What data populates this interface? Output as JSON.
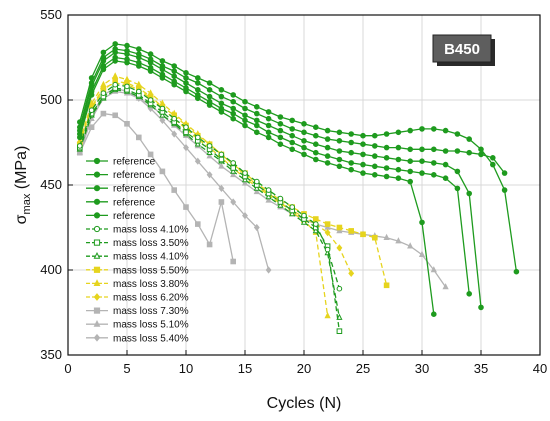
{
  "chart_data": {
    "type": "line",
    "badge": "B450",
    "xlabel": "Cycles (N)",
    "ylabel_main": "σ",
    "ylabel_sub": "max",
    "ylabel_unit": " (MPa)",
    "xlim": [
      0,
      40
    ],
    "ylim": [
      350,
      550
    ],
    "xticks": [
      "0",
      "5",
      "10",
      "15",
      "20",
      "25",
      "30",
      "35",
      "40"
    ],
    "yticks": [
      "350",
      "400",
      "450",
      "500",
      "550"
    ],
    "grid": true,
    "legend_position": "lower-left",
    "colors": {
      "reference": "#1a9a1a",
      "green_light": "#22a84a",
      "yellow": "#e0d21a",
      "yellow_dark": "#d6c400",
      "gray": "#b0b0b0",
      "badge_bg": "#5a5a5a"
    },
    "series": [
      {
        "name": "reference",
        "color": "#1e9b1e",
        "marker": "circle",
        "fill": true,
        "dash": false,
        "x": [
          1,
          2,
          3,
          4,
          5,
          6,
          7,
          8,
          9,
          10,
          11,
          12,
          13,
          14,
          15,
          16,
          17,
          18,
          19,
          20,
          21,
          22,
          23,
          24,
          25,
          26,
          27,
          28,
          29,
          30,
          31,
          32,
          33,
          34,
          35,
          36,
          37,
          38
        ],
        "y": [
          487,
          513,
          528,
          533,
          532,
          530,
          527,
          523,
          520,
          516,
          513,
          510,
          506,
          503,
          499,
          496,
          493,
          490,
          488,
          486,
          484,
          482,
          481,
          480,
          479,
          479,
          480,
          481,
          482,
          483,
          483,
          482,
          480,
          477,
          471,
          462,
          447,
          399
        ]
      },
      {
        "name": "reference",
        "color": "#1e9b1e",
        "marker": "circle",
        "fill": true,
        "dash": false,
        "x": [
          1,
          2,
          3,
          4,
          5,
          6,
          7,
          8,
          9,
          10,
          11,
          12,
          13,
          14,
          15,
          16,
          17,
          18,
          19,
          20,
          21,
          22,
          23,
          24,
          25,
          26,
          27,
          28,
          29,
          30,
          31,
          32,
          33,
          34,
          35,
          36,
          37
        ],
        "y": [
          484,
          510,
          525,
          530,
          529,
          527,
          524,
          520,
          517,
          513,
          510,
          506,
          502,
          499,
          495,
          492,
          489,
          486,
          483,
          481,
          479,
          477,
          476,
          475,
          474,
          473,
          472,
          472,
          471,
          471,
          471,
          470,
          470,
          469,
          468,
          466,
          457
        ]
      },
      {
        "name": "reference",
        "color": "#1e9b1e",
        "marker": "circle",
        "fill": true,
        "dash": false,
        "x": [
          1,
          2,
          3,
          4,
          5,
          6,
          7,
          8,
          9,
          10,
          11,
          12,
          13,
          14,
          15,
          16,
          17,
          18,
          19,
          20,
          21,
          22,
          23,
          24,
          25,
          26,
          27,
          28,
          29,
          30,
          31,
          32,
          33,
          34,
          35
        ],
        "y": [
          482,
          508,
          523,
          528,
          527,
          525,
          522,
          518,
          514,
          510,
          506,
          502,
          498,
          495,
          491,
          488,
          485,
          482,
          479,
          476,
          474,
          472,
          470,
          469,
          468,
          467,
          466,
          465,
          464,
          464,
          463,
          462,
          458,
          445,
          378
        ]
      },
      {
        "name": "reference",
        "color": "#1e9b1e",
        "marker": "circle",
        "fill": true,
        "dash": false,
        "x": [
          1,
          2,
          3,
          4,
          5,
          6,
          7,
          8,
          9,
          10,
          11,
          12,
          13,
          14,
          15,
          16,
          17,
          18,
          19,
          20,
          21,
          22,
          23,
          24,
          25,
          26,
          27,
          28,
          29,
          30,
          31,
          32,
          33,
          34
        ],
        "y": [
          480,
          505,
          520,
          525,
          524,
          522,
          519,
          515,
          511,
          507,
          503,
          499,
          495,
          492,
          488,
          485,
          481,
          478,
          475,
          472,
          469,
          467,
          465,
          463,
          462,
          461,
          460,
          459,
          458,
          457,
          456,
          454,
          448,
          386
        ]
      },
      {
        "name": "reference",
        "color": "#1e9b1e",
        "marker": "circle",
        "fill": true,
        "dash": false,
        "x": [
          1,
          2,
          3,
          4,
          5,
          6,
          7,
          8,
          9,
          10,
          11,
          12,
          13,
          14,
          15,
          16,
          17,
          18,
          19,
          20,
          21,
          22,
          23,
          24,
          25,
          26,
          27,
          28,
          29,
          30,
          31
        ],
        "y": [
          478,
          503,
          518,
          523,
          522,
          520,
          517,
          513,
          509,
          505,
          501,
          497,
          493,
          489,
          485,
          481,
          478,
          474,
          471,
          468,
          465,
          463,
          461,
          459,
          457,
          456,
          455,
          454,
          452,
          428,
          374
        ]
      },
      {
        "name": "mass loss 4.10%",
        "color": "#1e9b1e",
        "marker": "circle",
        "fill": false,
        "dash": true,
        "x": [
          1,
          2,
          3,
          4,
          5,
          6,
          7,
          8,
          9,
          10,
          11,
          12,
          13,
          14,
          15,
          16,
          17,
          18,
          19,
          20,
          21,
          22,
          23
        ],
        "y": [
          473,
          494,
          504,
          509,
          508,
          505,
          500,
          495,
          489,
          484,
          478,
          473,
          468,
          463,
          457,
          452,
          447,
          442,
          437,
          432,
          427,
          412,
          389
        ]
      },
      {
        "name": "mass loss 3.50%",
        "color": "#1e9b1e",
        "marker": "square",
        "fill": false,
        "dash": true,
        "x": [
          1,
          2,
          3,
          4,
          5,
          6,
          7,
          8,
          9,
          10,
          11,
          12,
          13,
          14,
          15,
          16,
          17,
          18,
          19,
          20,
          21,
          22,
          23
        ],
        "y": [
          472,
          492,
          502,
          507,
          506,
          503,
          498,
          493,
          487,
          481,
          476,
          471,
          465,
          460,
          455,
          450,
          445,
          440,
          435,
          430,
          425,
          414,
          364
        ]
      },
      {
        "name": "mass loss 4.10%",
        "color": "#1e9b1e",
        "marker": "triangle",
        "fill": false,
        "dash": true,
        "x": [
          1,
          2,
          3,
          4,
          5,
          6,
          7,
          8,
          9,
          10,
          11,
          12,
          13,
          14,
          15,
          16,
          17,
          18,
          19,
          20,
          21,
          22,
          23
        ],
        "y": [
          471,
          491,
          501,
          506,
          505,
          502,
          497,
          491,
          486,
          480,
          474,
          469,
          464,
          458,
          453,
          448,
          443,
          438,
          433,
          428,
          423,
          410,
          372
        ]
      },
      {
        "name": "mass loss 5.50%",
        "color": "#e6d41e",
        "marker": "square",
        "fill": true,
        "dash": true,
        "x": [
          1,
          2,
          3,
          4,
          5,
          6,
          7,
          8,
          9,
          10,
          11,
          12,
          13,
          14,
          15,
          16,
          17,
          18,
          19,
          20,
          21,
          22,
          23,
          24,
          25,
          26,
          27
        ],
        "y": [
          474,
          495,
          506,
          511,
          510,
          507,
          502,
          496,
          491,
          485,
          479,
          474,
          468,
          462,
          457,
          451,
          446,
          441,
          437,
          433,
          430,
          427,
          425,
          423,
          421,
          419,
          391
        ]
      },
      {
        "name": "mass loss 3.80%",
        "color": "#e6d41e",
        "marker": "triangle",
        "fill": true,
        "dash": true,
        "x": [
          1,
          2,
          3,
          4,
          5,
          6,
          7,
          8,
          9,
          10,
          11,
          12,
          13,
          14,
          15,
          16,
          17,
          18,
          19,
          20,
          21,
          22
        ],
        "y": [
          476,
          498,
          509,
          514,
          512,
          509,
          504,
          498,
          492,
          486,
          480,
          474,
          468,
          462,
          456,
          450,
          445,
          440,
          434,
          429,
          422,
          373
        ]
      },
      {
        "name": "mass loss 6.20%",
        "color": "#e6d41e",
        "marker": "diamond",
        "fill": true,
        "dash": true,
        "x": [
          1,
          2,
          3,
          4,
          5,
          6,
          7,
          8,
          9,
          10,
          11,
          12,
          13,
          14,
          15,
          16,
          17,
          18,
          19,
          20,
          21,
          22,
          23,
          24
        ],
        "y": [
          475,
          496,
          507,
          510,
          509,
          506,
          501,
          495,
          489,
          483,
          477,
          472,
          466,
          460,
          454,
          449,
          444,
          439,
          435,
          431,
          427,
          422,
          413,
          398
        ]
      },
      {
        "name": "mass loss 7.30%",
        "color": "#b4b4b4",
        "marker": "square",
        "fill": true,
        "dash": false,
        "x": [
          1,
          2,
          3,
          4,
          5,
          6,
          7,
          8,
          9,
          10,
          11,
          12,
          13,
          14
        ],
        "y": [
          469,
          484,
          492,
          491,
          486,
          478,
          468,
          458,
          447,
          437,
          427,
          415,
          440,
          405
        ]
      },
      {
        "name": "mass loss 5.10%",
        "color": "#b4b4b4",
        "marker": "triangle",
        "fill": true,
        "dash": false,
        "x": [
          1,
          2,
          3,
          4,
          5,
          6,
          7,
          8,
          9,
          10,
          11,
          12,
          13,
          14,
          15,
          16,
          17,
          18,
          19,
          20,
          21,
          22,
          23,
          24,
          25,
          26,
          27,
          28,
          29,
          30,
          31,
          32
        ],
        "y": [
          469,
          489,
          501,
          505,
          504,
          501,
          497,
          491,
          485,
          479,
          473,
          467,
          461,
          456,
          451,
          446,
          441,
          437,
          433,
          430,
          427,
          425,
          423,
          422,
          421,
          420,
          419,
          417,
          414,
          409,
          400,
          390
        ]
      },
      {
        "name": "mass loss 5.40%",
        "color": "#b4b4b4",
        "marker": "diamond",
        "fill": true,
        "dash": false,
        "x": [
          1,
          2,
          3,
          4,
          5,
          6,
          7,
          8,
          9,
          10,
          11,
          12,
          13,
          14,
          15,
          16,
          17
        ],
        "y": [
          470,
          491,
          503,
          507,
          505,
          501,
          495,
          488,
          480,
          472,
          464,
          456,
          448,
          440,
          432,
          425,
          400
        ]
      }
    ]
  }
}
